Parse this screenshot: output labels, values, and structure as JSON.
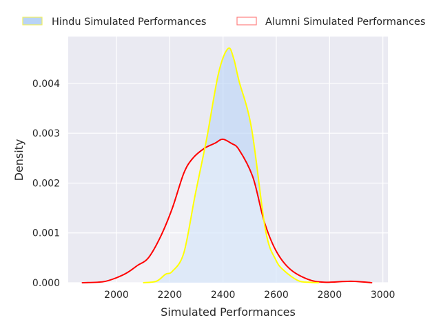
{
  "chart_data": {
    "type": "area",
    "title": "",
    "xlabel": "Simulated Performances",
    "ylabel": "Density",
    "xlim": [
      1819,
      3019
    ],
    "ylim": [
      0,
      0.00494
    ],
    "xticks": [
      2000,
      2200,
      2400,
      2600,
      2800,
      3000
    ],
    "xtick_labels": [
      "2000",
      "2200",
      "2400",
      "2600",
      "2800",
      "3000"
    ],
    "yticks": [
      0,
      0.001,
      0.002,
      0.003,
      0.004
    ],
    "ytick_labels": [
      "0.000",
      "0.001",
      "0.002",
      "0.003",
      "0.004"
    ],
    "grid": true,
    "legend_position": "top (outside, horizontal)",
    "series": [
      {
        "name": "Hindu Simulated Performances",
        "line_color": "#ffff00",
        "fill_color": "#b9d4f6",
        "x": [
          2100,
          2150,
          2184,
          2210,
          2253,
          2295,
          2339,
          2383,
          2419,
          2440,
          2460,
          2507,
          2559,
          2598,
          2632,
          2683,
          2720,
          2760
        ],
        "y": [
          0,
          3e-05,
          0.00017,
          0.00023,
          0.0006,
          0.00175,
          0.0029,
          0.0042,
          0.0047,
          0.0045,
          0.00405,
          0.0031,
          0.00107,
          0.00046,
          0.00023,
          4e-05,
          1e-05,
          0
        ]
      },
      {
        "name": "Alumni Simulated Performances",
        "line_color": "#ff0000",
        "fill_color": "#ffffff",
        "x": [
          1870,
          1950,
          2000,
          2040,
          2080,
          2120,
          2166,
          2210,
          2253,
          2287,
          2331,
          2370,
          2398,
          2430,
          2460,
          2512,
          2554,
          2598,
          2650,
          2718,
          2780,
          2880,
          2960
        ],
        "y": [
          0,
          2e-05,
          0.0001,
          0.0002,
          0.00035,
          0.0005,
          0.00093,
          0.0015,
          0.0022,
          0.0025,
          0.0027,
          0.0028,
          0.00288,
          0.0028,
          0.00267,
          0.00212,
          0.00124,
          0.00065,
          0.00028,
          7e-05,
          1e-05,
          3e-05,
          0
        ]
      }
    ]
  }
}
